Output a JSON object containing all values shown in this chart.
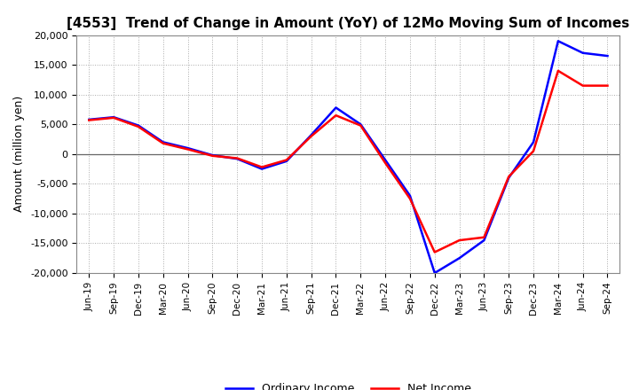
{
  "title": "[4553]  Trend of Change in Amount (YoY) of 12Mo Moving Sum of Incomes",
  "ylabel": "Amount (million yen)",
  "ylim": [
    -20000,
    20000
  ],
  "yticks": [
    -20000,
    -15000,
    -10000,
    -5000,
    0,
    5000,
    10000,
    15000,
    20000
  ],
  "background_color": "#FFFFFF",
  "plot_bg_color": "#FFFFFF",
  "grid_color": "#AAAAAA",
  "labels": [
    "Jun-19",
    "Sep-19",
    "Dec-19",
    "Mar-20",
    "Jun-20",
    "Sep-20",
    "Dec-20",
    "Mar-21",
    "Jun-21",
    "Sep-21",
    "Dec-21",
    "Mar-22",
    "Jun-22",
    "Sep-22",
    "Dec-22",
    "Mar-23",
    "Jun-23",
    "Sep-23",
    "Dec-23",
    "Mar-24",
    "Jun-24",
    "Sep-24"
  ],
  "ordinary_income": [
    5800,
    6200,
    4800,
    2000,
    1000,
    -200,
    -800,
    -2500,
    -1200,
    3200,
    7800,
    5000,
    -1000,
    -7000,
    -20000,
    -17500,
    -14500,
    -4000,
    2000,
    19000,
    17000,
    16500
  ],
  "net_income": [
    5700,
    6100,
    4600,
    1800,
    800,
    -300,
    -700,
    -2200,
    -1000,
    3000,
    6500,
    4800,
    -1500,
    -7500,
    -16500,
    -14500,
    -14000,
    -3800,
    500,
    14000,
    11500,
    11500
  ],
  "ordinary_color": "#0000FF",
  "net_color": "#FF0000",
  "line_width": 1.8,
  "legend_labels": [
    "Ordinary Income",
    "Net Income"
  ],
  "title_fontsize": 11,
  "ylabel_fontsize": 9,
  "ytick_fontsize": 8,
  "xtick_fontsize": 7.5,
  "legend_fontsize": 9
}
